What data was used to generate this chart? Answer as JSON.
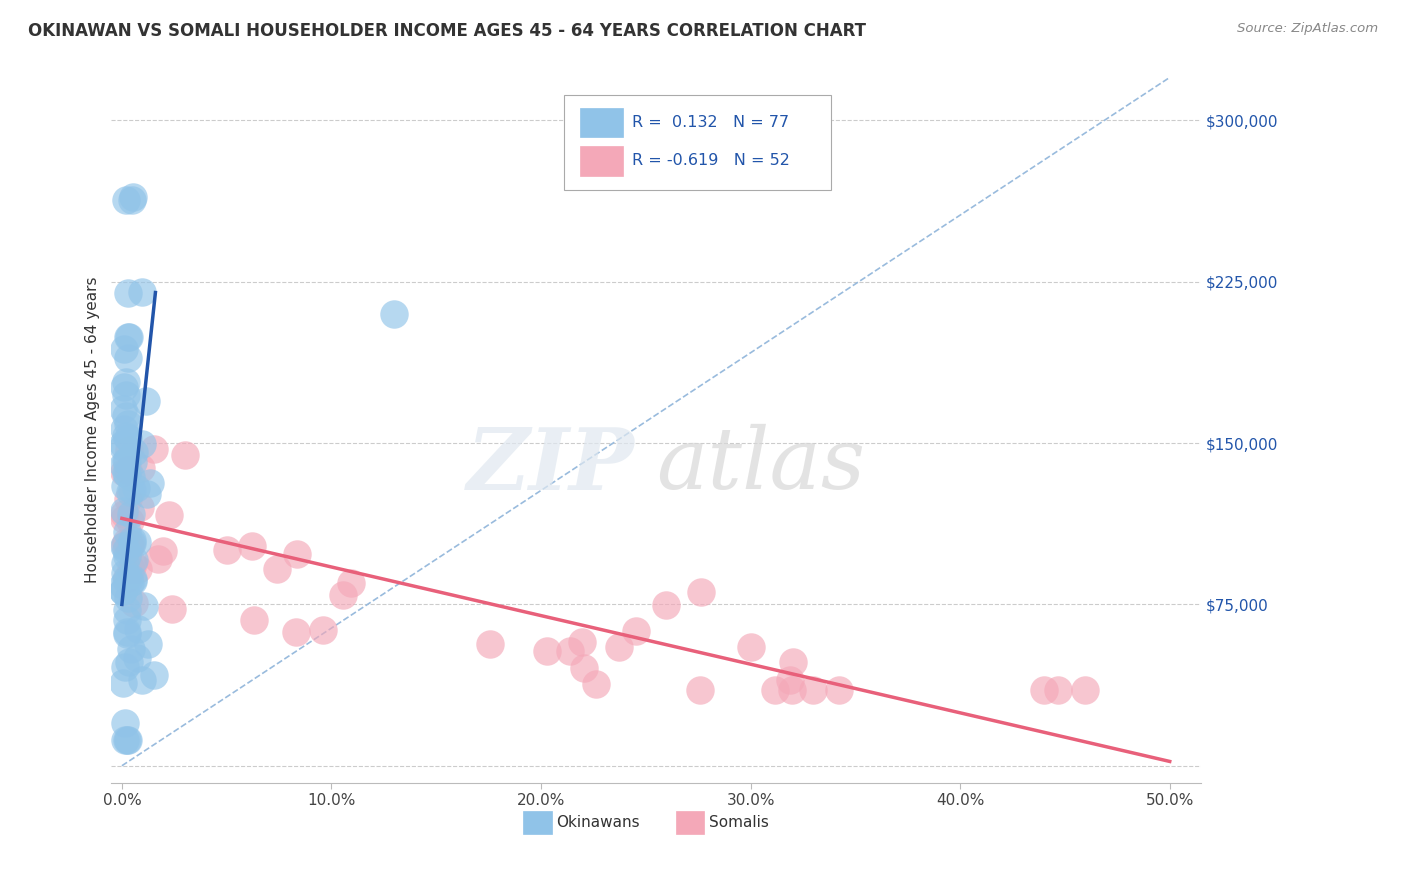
{
  "title": "OKINAWAN VS SOMALI HOUSEHOLDER INCOME AGES 45 - 64 YEARS CORRELATION CHART",
  "source": "Source: ZipAtlas.com",
  "ylabel": "Householder Income Ages 45 - 64 years",
  "watermark_zip": "ZIP",
  "watermark_atlas": "atlas",
  "xlim": [
    -0.005,
    0.515
  ],
  "ylim": [
    -8000,
    320000
  ],
  "xticks": [
    0.0,
    0.1,
    0.2,
    0.3,
    0.4,
    0.5
  ],
  "xtick_labels": [
    "0.0%",
    "10.0%",
    "20.0%",
    "30.0%",
    "40.0%",
    "50.0%"
  ],
  "yticks": [
    0,
    75000,
    150000,
    225000,
    300000
  ],
  "ytick_labels_right": [
    "",
    "$75,000",
    "$150,000",
    "$225,000",
    "$300,000"
  ],
  "okinawan_color": "#90C3E8",
  "somali_color": "#F4A8B8",
  "okinawan_line_color": "#2255AA",
  "somali_line_color": "#E8607A",
  "ref_line_color": "#99BBDD",
  "grid_color": "#CCCCCC",
  "legend_okinawan_label_r": "0.132",
  "legend_okinawan_label_n": "77",
  "legend_somali_label_r": "-0.619",
  "legend_somali_label_n": "52",
  "legend_bottom_okinawan": "Okinawans",
  "legend_bottom_somali": "Somalis",
  "background_color": "#FFFFFF",
  "okinawan_trend_x": [
    0.0,
    0.016
  ],
  "okinawan_trend_y": [
    75000,
    220000
  ],
  "somali_trend_x": [
    0.0,
    0.5
  ],
  "somali_trend_y": [
    115000,
    2000
  ],
  "ref_line_x": [
    0.0,
    0.5
  ],
  "ref_line_y": [
    0,
    320000
  ]
}
